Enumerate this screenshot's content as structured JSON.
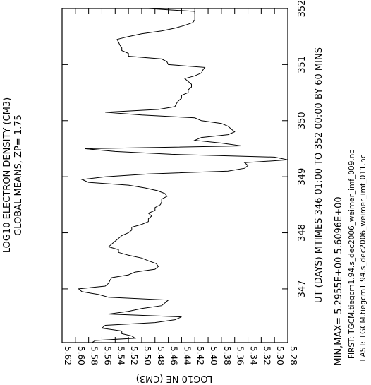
{
  "chart_data": {
    "type": "line",
    "title": "LOG10 ELECTRON DENSITY (CM3)",
    "subtitle": "GLOBAL MEANS, ZP=  1.75",
    "xlabel": "UT (DAYS) MTIMES 346 01:00 TO 352 00:00 BY    60 MINS",
    "ylabel": "LOG10 NE (CM3)",
    "min_max": "MIN,MAX=  5.2955E+00   5.6096E+00",
    "first_file": "FIRST: TGCM.tiegcm1.94.s_dec2006_weimer_imf_009.nc",
    "last_file": "LAST:  TGCM.tiegcm1.94.s_dec2006_weimer_imf_011.nc",
    "xlim": [
      346.0417,
      352.0
    ],
    "ylim": [
      5.28,
      5.62
    ],
    "x_ticks": [
      "347",
      "348",
      "349",
      "350",
      "351",
      "352"
    ],
    "x_tick_values": [
      347,
      348,
      349,
      350,
      351,
      352
    ],
    "y_ticks": [
      "5.62",
      "5.60",
      "5.58",
      "5.56",
      "5.54",
      "5.52",
      "5.50",
      "5.48",
      "5.46",
      "5.44",
      "5.42",
      "5.40",
      "5.38",
      "5.36",
      "5.34",
      "5.32",
      "5.30",
      "5.28"
    ],
    "y_tick_values": [
      5.62,
      5.6,
      5.58,
      5.56,
      5.54,
      5.52,
      5.5,
      5.48,
      5.46,
      5.44,
      5.42,
      5.4,
      5.38,
      5.36,
      5.34,
      5.32,
      5.3,
      5.28
    ],
    "series": [
      {
        "x": [
          346.04,
          346.08,
          346.12,
          346.16,
          346.2,
          346.25,
          346.3,
          346.35,
          346.4,
          346.45,
          346.5,
          346.55,
          346.6,
          346.65,
          346.7,
          346.75,
          346.8,
          346.85,
          346.9,
          346.95,
          347.0,
          347.05,
          347.1,
          347.15,
          347.2,
          347.25,
          347.3,
          347.35,
          347.4,
          347.45,
          347.5,
          347.55,
          347.6,
          347.65,
          347.7,
          347.75,
          347.8,
          347.85,
          347.9,
          347.95,
          348.0,
          348.05,
          348.1,
          348.15,
          348.2,
          348.25,
          348.3,
          348.35,
          348.4,
          348.45,
          348.5,
          348.55,
          348.6,
          348.65,
          348.7,
          348.75,
          348.8,
          348.85,
          348.9,
          348.95,
          349.0,
          349.05,
          349.1,
          349.15,
          349.2,
          349.25,
          349.3,
          349.35,
          349.4,
          349.45,
          349.5,
          349.55,
          349.6,
          349.65,
          349.7,
          349.75,
          349.8,
          349.85,
          349.9,
          349.95,
          350.0,
          350.05,
          350.1,
          350.15,
          350.2,
          350.25,
          350.3,
          350.35,
          350.4,
          350.45,
          350.5,
          350.55,
          350.6,
          350.65,
          350.7,
          350.75,
          350.8,
          350.85,
          350.9,
          350.95,
          351.0,
          351.05,
          351.1,
          351.15,
          351.2,
          351.25,
          351.3,
          351.35,
          351.4,
          351.45,
          351.5,
          351.55,
          351.6,
          351.65,
          351.7,
          351.75,
          351.8,
          351.85,
          351.9,
          351.95,
          352.0
        ],
        "values": [
          5.575,
          5.57,
          5.51,
          5.515,
          5.53,
          5.53,
          5.56,
          5.555,
          5.48,
          5.45,
          5.44,
          5.55,
          5.52,
          5.5,
          5.47,
          5.465,
          5.46,
          5.55,
          5.565,
          5.59,
          5.595,
          5.555,
          5.55,
          5.548,
          5.545,
          5.52,
          5.51,
          5.48,
          5.475,
          5.478,
          5.49,
          5.5,
          5.52,
          5.535,
          5.535,
          5.55,
          5.545,
          5.54,
          5.535,
          5.53,
          5.52,
          5.515,
          5.515,
          5.5,
          5.49,
          5.49,
          5.485,
          5.49,
          5.48,
          5.48,
          5.472,
          5.47,
          5.47,
          5.462,
          5.465,
          5.476,
          5.495,
          5.52,
          5.58,
          5.59,
          5.555,
          5.49,
          5.37,
          5.345,
          5.34,
          5.345,
          5.28,
          5.3,
          5.455,
          5.54,
          5.585,
          5.35,
          5.38,
          5.42,
          5.41,
          5.37,
          5.36,
          5.365,
          5.37,
          5.38,
          5.41,
          5.42,
          5.5,
          5.555,
          5.475,
          5.45,
          5.448,
          5.445,
          5.44,
          5.44,
          5.43,
          5.43,
          5.425,
          5.425,
          5.43,
          5.435,
          5.42,
          5.41,
          5.408,
          5.405,
          5.46,
          5.462,
          5.47,
          5.52,
          5.52,
          5.53,
          5.53,
          5.533,
          5.535,
          5.537,
          5.52,
          5.5,
          5.47,
          5.45,
          5.435,
          5.423,
          5.42,
          5.42,
          5.42,
          5.42,
          5.49
        ]
      }
    ],
    "grid": false
  }
}
